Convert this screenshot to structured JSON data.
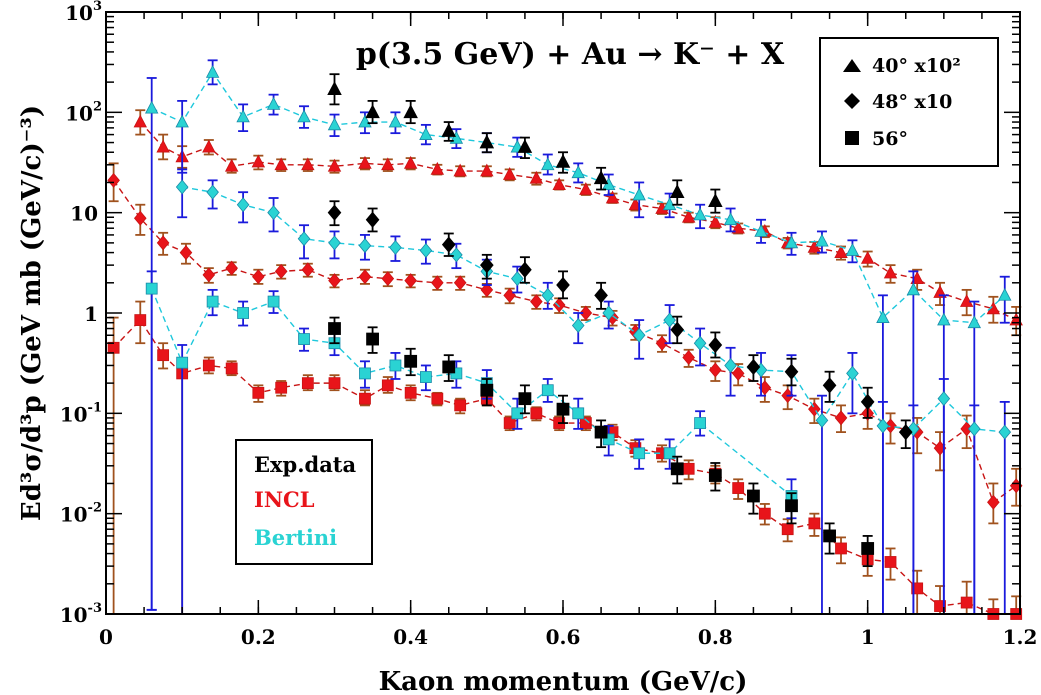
{
  "chart_data": {
    "type": "scatter",
    "title": "p(3.5 GeV) + Au → K⁻ + X",
    "xlabel": "Kaon momentum (GeV/c)",
    "ylabel": "Ed³σ/d³p (GeV mb (GeV/c)⁻³)",
    "xlim": [
      0,
      1.2
    ],
    "ylim": [
      0.001,
      1000
    ],
    "yscale": "log",
    "xticks": [
      {
        "v": 0,
        "label": "0"
      },
      {
        "v": 0.2,
        "label": "0.2"
      },
      {
        "v": 0.4,
        "label": "0.4"
      },
      {
        "v": 0.6,
        "label": "0.6"
      },
      {
        "v": 0.8,
        "label": "0.8"
      },
      {
        "v": 1.0,
        "label": "1"
      },
      {
        "v": 1.2,
        "label": "1.2"
      }
    ],
    "yticks": [
      {
        "v": 0.001,
        "base": "10",
        "exp": "-3"
      },
      {
        "v": 0.01,
        "base": "10",
        "exp": "-2"
      },
      {
        "v": 0.1,
        "base": "10",
        "exp": "-1"
      },
      {
        "v": 1,
        "base": "1",
        "exp": ""
      },
      {
        "v": 10,
        "base": "10",
        "exp": ""
      },
      {
        "v": 100,
        "base": "10",
        "exp": "2"
      },
      {
        "v": 1000,
        "base": "10",
        "exp": "3"
      }
    ],
    "legend": [
      {
        "label": "40° x10²",
        "marker": "triangle"
      },
      {
        "label": "48° x10",
        "marker": "diamond"
      },
      {
        "label": "56°",
        "marker": "square"
      }
    ],
    "sources": [
      {
        "label": "Exp.data",
        "color": "#000000"
      },
      {
        "label": "INCL",
        "color": "#e8141a"
      },
      {
        "label": "Bertini",
        "color": "#2ad3d3"
      }
    ],
    "colors": {
      "exp": "#000000",
      "incl_fill": "#e8141a",
      "incl_line": "#c81414",
      "incl_err": "#a0521e",
      "bertini_fill": "#2ad3d3",
      "bertini_line": "#1ec8dc",
      "bertini_err": "#1a1adc"
    },
    "series": [
      {
        "name": "Exp.data 40° x10²",
        "source": "exp",
        "marker": "triangle",
        "x": [
          0.3,
          0.35,
          0.4,
          0.45,
          0.5,
          0.55,
          0.6,
          0.65,
          0.75,
          0.8
        ],
        "y": [
          170,
          100,
          100,
          65,
          50,
          45,
          32,
          22,
          16,
          13
        ],
        "ylo": [
          120,
          78,
          78,
          52,
          40,
          35,
          25,
          17,
          12,
          10
        ],
        "yhi": [
          240,
          130,
          130,
          80,
          62,
          56,
          40,
          28,
          21,
          17
        ]
      },
      {
        "name": "Exp.data 48° x10",
        "source": "exp",
        "marker": "diamond",
        "x": [
          0.3,
          0.35,
          0.45,
          0.5,
          0.55,
          0.6,
          0.65,
          0.75,
          0.8,
          0.85,
          0.9,
          0.95,
          1.0,
          1.05
        ],
        "y": [
          10,
          8.5,
          4.8,
          3.0,
          2.7,
          1.9,
          1.5,
          0.68,
          0.48,
          0.29,
          0.26,
          0.19,
          0.13,
          0.065
        ],
        "ylo": [
          7.5,
          6.5,
          3.7,
          2.2,
          2.0,
          1.4,
          1.1,
          0.5,
          0.36,
          0.21,
          0.19,
          0.13,
          0.09,
          0.045
        ],
        "yhi": [
          13,
          11,
          6.2,
          3.8,
          3.6,
          2.6,
          2.0,
          0.92,
          0.64,
          0.38,
          0.35,
          0.26,
          0.18,
          0.085
        ]
      },
      {
        "name": "Exp.data 56°",
        "source": "exp",
        "marker": "square",
        "x": [
          0.3,
          0.35,
          0.4,
          0.45,
          0.5,
          0.55,
          0.6,
          0.65,
          0.75,
          0.8,
          0.85,
          0.9,
          0.95,
          1.0
        ],
        "y": [
          0.7,
          0.55,
          0.33,
          0.29,
          0.17,
          0.14,
          0.11,
          0.065,
          0.028,
          0.024,
          0.015,
          0.012,
          0.006,
          0.0045
        ],
        "ylo": [
          0.5,
          0.4,
          0.24,
          0.21,
          0.12,
          0.1,
          0.08,
          0.046,
          0.02,
          0.017,
          0.01,
          0.008,
          0.004,
          0.003
        ],
        "yhi": [
          0.9,
          0.72,
          0.44,
          0.38,
          0.22,
          0.19,
          0.15,
          0.085,
          0.037,
          0.032,
          0.02,
          0.016,
          0.008,
          0.006
        ]
      },
      {
        "name": "INCL 40° x10²",
        "source": "incl",
        "marker": "triangle",
        "x": [
          0.045,
          0.075,
          0.1,
          0.135,
          0.165,
          0.2,
          0.23,
          0.265,
          0.3,
          0.34,
          0.37,
          0.4,
          0.435,
          0.465,
          0.5,
          0.53,
          0.565,
          0.595,
          0.63,
          0.665,
          0.695,
          0.73,
          0.765,
          0.8,
          0.83,
          0.865,
          0.895,
          0.93,
          0.965,
          1.0,
          1.03,
          1.065,
          1.095,
          1.13,
          1.165,
          1.195
        ],
        "y": [
          80,
          45,
          36,
          45,
          29,
          32,
          30,
          30,
          29,
          31,
          30,
          31,
          27,
          26,
          26,
          24,
          22,
          19,
          17,
          14,
          12,
          11,
          9,
          8,
          7,
          6.5,
          5,
          4.5,
          4,
          3.5,
          2.5,
          2.2,
          1.6,
          1.3,
          1.1,
          0.85
        ],
        "ylo": [
          60,
          34,
          28,
          38,
          25,
          27,
          26,
          26,
          25,
          27,
          26,
          27,
          24,
          23,
          23,
          21,
          19,
          17,
          15,
          12.5,
          10.5,
          9.7,
          8,
          7,
          6.2,
          5.7,
          4.4,
          3.9,
          3.4,
          2.9,
          2.0,
          1.7,
          1.2,
          0.95,
          0.8,
          0.6
        ],
        "yhi": [
          105,
          60,
          46,
          53,
          34,
          37,
          34,
          34,
          33,
          35,
          34,
          35,
          30,
          29,
          29,
          27,
          25,
          21,
          19,
          15.5,
          13.5,
          12.3,
          10,
          9,
          7.8,
          7.3,
          5.6,
          5.1,
          4.6,
          4.1,
          3.0,
          2.7,
          2.0,
          1.7,
          1.45,
          1.15
        ]
      },
      {
        "name": "INCL 48° x10",
        "source": "incl",
        "marker": "diamond",
        "x": [
          0.01,
          0.045,
          0.075,
          0.105,
          0.135,
          0.165,
          0.2,
          0.23,
          0.265,
          0.3,
          0.34,
          0.37,
          0.4,
          0.435,
          0.465,
          0.5,
          0.53,
          0.565,
          0.595,
          0.63,
          0.665,
          0.695,
          0.73,
          0.765,
          0.8,
          0.83,
          0.865,
          0.895,
          0.93,
          0.965,
          1.0,
          1.03,
          1.065,
          1.095,
          1.13,
          1.165,
          1.195
        ],
        "y": [
          21,
          8.8,
          5,
          4,
          2.4,
          2.8,
          2.3,
          2.6,
          2.7,
          2.1,
          2.3,
          2.2,
          2.1,
          2.0,
          2.0,
          1.7,
          1.5,
          1.3,
          1.2,
          1.0,
          0.9,
          0.65,
          0.5,
          0.36,
          0.27,
          0.25,
          0.18,
          0.15,
          0.11,
          0.09,
          0.1,
          0.075,
          0.065,
          0.045,
          0.07,
          0.013,
          0.019
        ],
        "ylo": [
          13,
          6,
          3.8,
          3.1,
          2.0,
          2.4,
          1.95,
          2.2,
          2.3,
          1.8,
          1.95,
          1.85,
          1.8,
          1.7,
          1.7,
          1.45,
          1.25,
          1.1,
          1.0,
          0.85,
          0.75,
          0.54,
          0.41,
          0.29,
          0.21,
          0.19,
          0.13,
          0.11,
          0.08,
          0.065,
          0.07,
          0.05,
          0.04,
          0.027,
          0.045,
          0.008,
          0.012
        ],
        "yhi": [
          31,
          12,
          6.3,
          4.9,
          2.8,
          3.2,
          2.7,
          3.0,
          3.1,
          2.4,
          2.7,
          2.55,
          2.4,
          2.3,
          2.3,
          1.95,
          1.75,
          1.5,
          1.4,
          1.15,
          1.05,
          0.76,
          0.6,
          0.43,
          0.33,
          0.31,
          0.23,
          0.19,
          0.14,
          0.12,
          0.13,
          0.1,
          0.09,
          0.065,
          0.095,
          0.02,
          0.028
        ]
      },
      {
        "name": "INCL 56°",
        "source": "incl",
        "marker": "square",
        "x": [
          0.01,
          0.045,
          0.075,
          0.1,
          0.135,
          0.165,
          0.2,
          0.23,
          0.265,
          0.3,
          0.34,
          0.37,
          0.4,
          0.435,
          0.465,
          0.5,
          0.53,
          0.565,
          0.595,
          0.63,
          0.665,
          0.695,
          0.73,
          0.765,
          0.8,
          0.83,
          0.865,
          0.895,
          0.93,
          0.965,
          1.0,
          1.03,
          1.065,
          1.095,
          1.13,
          1.165,
          1.195
        ],
        "y": [
          0.45,
          0.85,
          0.38,
          0.25,
          0.3,
          0.28,
          0.16,
          0.18,
          0.2,
          0.2,
          0.14,
          0.19,
          0.16,
          0.14,
          0.12,
          0.14,
          0.08,
          0.1,
          0.08,
          0.08,
          0.065,
          0.045,
          0.04,
          0.028,
          0.025,
          0.018,
          0.01,
          0.007,
          0.008,
          0.0045,
          0.0035,
          0.0033,
          0.0018,
          0.0012,
          0.0013,
          0.00085,
          0.001
        ],
        "ylo": [
          0.001,
          0.5,
          0.28,
          0.001,
          0.25,
          0.24,
          0.13,
          0.15,
          0.17,
          0.17,
          0.12,
          0.16,
          0.135,
          0.12,
          0.1,
          0.12,
          0.068,
          0.085,
          0.068,
          0.068,
          0.054,
          0.037,
          0.033,
          0.022,
          0.02,
          0.014,
          0.0078,
          0.0053,
          0.006,
          0.0032,
          0.0024,
          0.0022,
          0.001,
          0.001,
          0.001,
          0.001,
          0.001
        ],
        "yhi": [
          0.9,
          1.3,
          0.5,
          0.32,
          0.36,
          0.33,
          0.19,
          0.21,
          0.24,
          0.24,
          0.17,
          0.23,
          0.19,
          0.16,
          0.14,
          0.16,
          0.093,
          0.115,
          0.093,
          0.093,
          0.077,
          0.054,
          0.048,
          0.034,
          0.03,
          0.022,
          0.0125,
          0.0088,
          0.01,
          0.0058,
          0.0047,
          0.0045,
          0.0027,
          0.0019,
          0.0021,
          0.0014,
          0.0015
        ]
      },
      {
        "name": "Bertini 40° x10²",
        "source": "bertini",
        "marker": "triangle",
        "x": [
          0.06,
          0.1,
          0.14,
          0.18,
          0.22,
          0.26,
          0.3,
          0.34,
          0.38,
          0.42,
          0.46,
          0.5,
          0.54,
          0.58,
          0.62,
          0.66,
          0.7,
          0.74,
          0.78,
          0.82,
          0.86,
          0.9,
          0.94,
          0.98,
          1.02,
          1.06,
          1.1,
          1.14,
          1.18
        ],
        "y": [
          110,
          80,
          250,
          90,
          120,
          90,
          75,
          80,
          80,
          60,
          55,
          50,
          45,
          30,
          25,
          19,
          15,
          12,
          9.5,
          8.5,
          6.5,
          5,
          5.2,
          4.2,
          0.9,
          1.7,
          0.85,
          0.8,
          1.5
        ],
        "ylo": [
          0.0011,
          25,
          190,
          65,
          95,
          70,
          58,
          62,
          62,
          48,
          44,
          40,
          36,
          24,
          20,
          15,
          9,
          9,
          7,
          6.5,
          5,
          3.8,
          4.0,
          3.2,
          0.001,
          0.001,
          0.001,
          0.001,
          0.8
        ],
        "yhi": [
          220,
          130,
          330,
          120,
          150,
          115,
          95,
          100,
          100,
          75,
          68,
          62,
          56,
          38,
          31,
          24,
          20,
          15.5,
          12,
          11,
          8.5,
          6.3,
          6.5,
          5.3,
          1.5,
          2.6,
          1.5,
          1.3,
          2.3
        ]
      },
      {
        "name": "Bertini 48° x10",
        "source": "bertini",
        "marker": "diamond",
        "x": [
          0.1,
          0.14,
          0.18,
          0.22,
          0.26,
          0.3,
          0.34,
          0.38,
          0.42,
          0.46,
          0.5,
          0.54,
          0.58,
          0.62,
          0.66,
          0.7,
          0.74,
          0.78,
          0.82,
          0.86,
          0.9,
          0.94,
          0.98,
          1.02,
          1.06,
          1.1,
          1.14,
          1.18
        ],
        "y": [
          18,
          16,
          12,
          10,
          5.5,
          5,
          4.7,
          4.5,
          4.2,
          3.8,
          2.6,
          2.2,
          1.5,
          0.75,
          1.0,
          0.6,
          0.85,
          0.5,
          0.3,
          0.27,
          0.26,
          0.085,
          0.25,
          0.075,
          0.07,
          0.14,
          0.07,
          0.065
        ],
        "ylo": [
          9,
          11,
          8,
          6.5,
          3.5,
          3.5,
          3.4,
          3.3,
          3.1,
          2.8,
          1.9,
          1.6,
          1.1,
          0.5,
          0.7,
          0.35,
          0.5,
          0.3,
          0.15,
          0.15,
          0.15,
          0.001,
          0.1,
          0.001,
          0.001,
          0.001,
          0.001,
          0.001
        ],
        "yhi": [
          27,
          21,
          16,
          14,
          7.5,
          6.5,
          6,
          5.8,
          5.4,
          4.9,
          3.4,
          2.9,
          2.0,
          1.0,
          1.3,
          0.85,
          1.2,
          0.7,
          0.45,
          0.4,
          0.38,
          0.15,
          0.4,
          0.13,
          0.12,
          0.22,
          0.12,
          0.13
        ]
      },
      {
        "name": "Bertini 56°",
        "source": "bertini",
        "marker": "square",
        "x": [
          0.06,
          0.1,
          0.14,
          0.18,
          0.22,
          0.26,
          0.3,
          0.34,
          0.38,
          0.42,
          0.46,
          0.5,
          0.54,
          0.58,
          0.62,
          0.66,
          0.7,
          0.74,
          0.78,
          0.9
        ],
        "y": [
          1.75,
          0.32,
          1.3,
          1.0,
          1.3,
          0.55,
          0.5,
          0.25,
          0.3,
          0.23,
          0.25,
          0.2,
          0.1,
          0.17,
          0.1,
          0.055,
          0.04,
          0.04,
          0.08,
          0.015
        ],
        "ylo": [
          0.0011,
          0.001,
          0.95,
          0.75,
          1.0,
          0.42,
          0.38,
          0.18,
          0.22,
          0.17,
          0.18,
          0.14,
          0.07,
          0.13,
          0.07,
          0.038,
          0.028,
          0.028,
          0.06,
          0.009
        ],
        "yhi": [
          2.6,
          0.48,
          1.7,
          1.3,
          1.65,
          0.7,
          0.65,
          0.33,
          0.4,
          0.3,
          0.33,
          0.27,
          0.14,
          0.22,
          0.14,
          0.075,
          0.055,
          0.055,
          0.105,
          0.022
        ]
      }
    ]
  }
}
